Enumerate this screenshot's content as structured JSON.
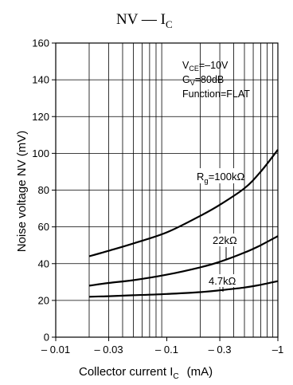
{
  "chart_data": {
    "type": "line",
    "title": {
      "main": "NV — I",
      "sub": "C"
    },
    "xlabel": {
      "main": "Collector current  I",
      "sub": "C",
      "unit": "(mA)"
    },
    "ylabel": "Noise voltage  NV   (mV)",
    "x_scale": "log",
    "x_range": [
      -0.01,
      -1
    ],
    "y_range": [
      0,
      160
    ],
    "x_ticks": [
      -0.01,
      -0.03,
      -0.1,
      -0.3,
      -1
    ],
    "x_tick_labels": [
      "– 0.01",
      "– 0.03",
      "– 0.1",
      "– 0.3",
      "–1"
    ],
    "y_ticks": [
      0,
      20,
      40,
      60,
      80,
      100,
      120,
      140,
      160
    ],
    "y_tick_labels": [
      "0",
      "20",
      "40",
      "60",
      "80",
      "100",
      "120",
      "140",
      "160"
    ],
    "grid": true,
    "conditions": [
      {
        "main": "V",
        "sub": "CE",
        "rest": "=–10V"
      },
      {
        "main": "G",
        "sub": "V",
        "rest": "=80dB"
      },
      {
        "main": "Function=FLAT",
        "sub": "",
        "rest": ""
      }
    ],
    "series": [
      {
        "name": "R_g=100kΩ",
        "label_main": "R",
        "label_sub": "g",
        "label_rest": "=100kΩ",
        "x": [
          -0.02,
          -0.03,
          -0.05,
          -0.1,
          -0.2,
          -0.3,
          -0.5,
          -0.7,
          -1
        ],
        "y": [
          44,
          47,
          51,
          57,
          66,
          72,
          81,
          90,
          102
        ]
      },
      {
        "name": "22kΩ",
        "label_main": "22kΩ",
        "x": [
          -0.02,
          -0.03,
          -0.05,
          -0.1,
          -0.2,
          -0.3,
          -0.5,
          -0.7,
          -1
        ],
        "y": [
          28,
          29.5,
          31,
          34,
          38,
          41,
          46,
          50,
          55
        ]
      },
      {
        "name": "4.7kΩ",
        "label_main": "4.7kΩ",
        "x": [
          -0.02,
          -0.03,
          -0.05,
          -0.1,
          -0.2,
          -0.3,
          -0.5,
          -0.7,
          -1
        ],
        "y": [
          22,
          22.3,
          22.8,
          23.5,
          24.5,
          25.5,
          27,
          28.5,
          30.5
        ]
      }
    ]
  }
}
